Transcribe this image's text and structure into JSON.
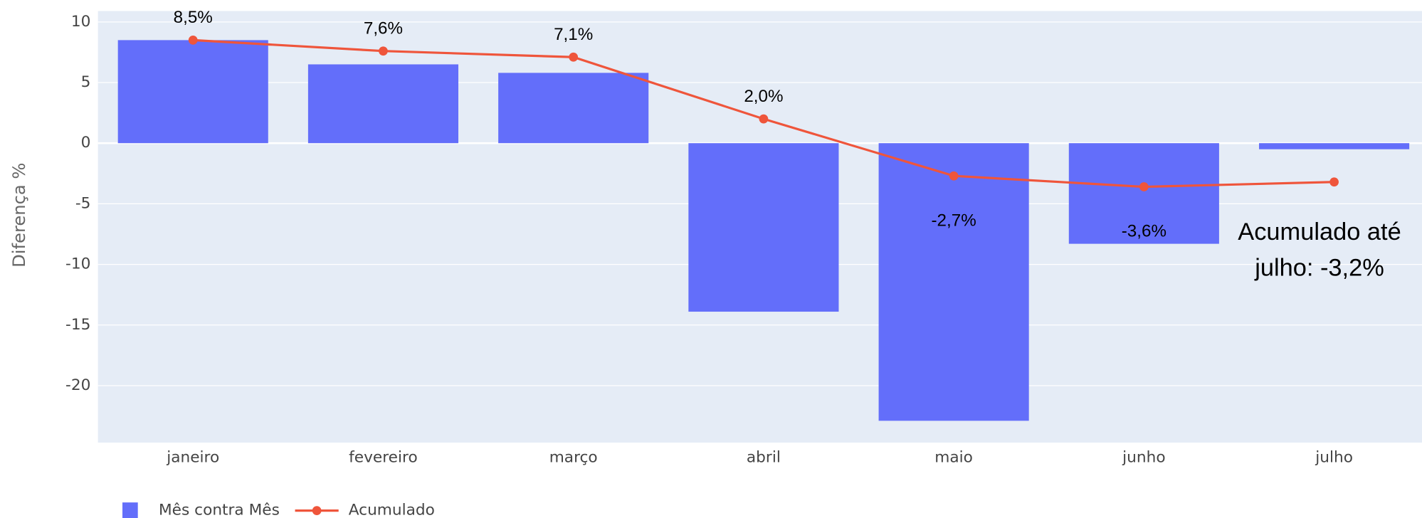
{
  "chart_data": {
    "type": "bar_line",
    "y_axis_label": "Diferença %",
    "categories": [
      "janeiro",
      "fevereiro",
      "março",
      "abril",
      "maio",
      "junho",
      "julho"
    ],
    "series": [
      {
        "name": "Mês contra Mês",
        "type": "bar",
        "color": "#636efa",
        "values": [
          8.5,
          6.5,
          5.8,
          -13.9,
          -22.9,
          -8.3,
          -0.5
        ]
      },
      {
        "name": "Acumulado",
        "type": "line",
        "color": "#ef553b",
        "values": [
          8.5,
          7.6,
          7.1,
          2.0,
          -2.7,
          -3.6,
          -3.2
        ],
        "value_labels": [
          "8,5%",
          "7,6%",
          "7,1%",
          "2,0%",
          "-2,7%",
          "-3,6%",
          null
        ]
      }
    ],
    "annotation": [
      "Acumulado até",
      "julho:  -3,2%"
    ],
    "ylim": [
      -24.7,
      10.9
    ],
    "yticks": [
      10,
      5,
      0,
      -5,
      -10,
      -15,
      -20
    ],
    "grid": true,
    "legend": "bottom-left"
  }
}
